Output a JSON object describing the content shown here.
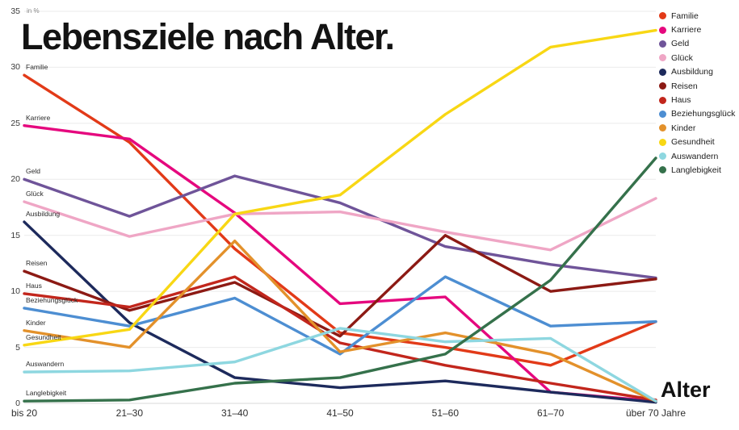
{
  "title": "Lebensziele nach Alter.",
  "y_axis": {
    "unit_label": "in %",
    "ticks": [
      0,
      5,
      10,
      15,
      20,
      25,
      30,
      35
    ],
    "max": 35
  },
  "x_axis": {
    "label": "Alter"
  },
  "chart_data": {
    "type": "line",
    "title": "Lebensziele nach Alter.",
    "xlabel": "Alter",
    "ylabel": "in %",
    "ylim": [
      0,
      35
    ],
    "grid": true,
    "legend_position": "top-right",
    "categories": [
      "bis 20",
      "21–30",
      "31–40",
      "41–50",
      "51–60",
      "61–70",
      "über 70 Jahre"
    ],
    "series": [
      {
        "name": "Familie",
        "color": "#e23a18",
        "values": [
          29.3,
          23.3,
          13.8,
          6.3,
          5.0,
          3.4,
          7.3
        ]
      },
      {
        "name": "Karriere",
        "color": "#e5087e",
        "values": [
          24.8,
          23.6,
          17.0,
          8.9,
          9.5,
          1.0,
          0.2
        ]
      },
      {
        "name": "Geld",
        "color": "#6f5499",
        "values": [
          20.0,
          16.7,
          20.3,
          17.9,
          14.0,
          12.4,
          11.2
        ]
      },
      {
        "name": "Glück",
        "color": "#efa6c5",
        "values": [
          18.0,
          14.9,
          16.9,
          17.1,
          15.3,
          13.7,
          18.3
        ]
      },
      {
        "name": "Ausbildung",
        "color": "#1d2a5c",
        "values": [
          16.2,
          7.2,
          2.3,
          1.4,
          2.0,
          1.0,
          0.1
        ]
      },
      {
        "name": "Reisen",
        "color": "#8c1a14",
        "values": [
          11.8,
          8.3,
          10.8,
          6.0,
          15.0,
          10.0,
          11.1
        ]
      },
      {
        "name": "Haus",
        "color": "#c2261c",
        "values": [
          9.8,
          8.6,
          11.3,
          5.4,
          3.4,
          1.8,
          0.3
        ]
      },
      {
        "name": "Beziehungsglück",
        "color": "#4d8ed2",
        "values": [
          8.5,
          6.9,
          9.4,
          4.4,
          11.3,
          6.9,
          7.3
        ]
      },
      {
        "name": "Kinder",
        "color": "#e3912b",
        "values": [
          6.5,
          5.0,
          14.5,
          4.6,
          6.3,
          4.4,
          0.2
        ]
      },
      {
        "name": "Gesundheit",
        "color": "#f8d714",
        "values": [
          5.2,
          6.6,
          16.9,
          18.6,
          25.8,
          31.8,
          33.3
        ]
      },
      {
        "name": "Auswandern",
        "color": "#8ed7e0",
        "values": [
          2.8,
          2.9,
          3.7,
          6.7,
          5.5,
          5.8,
          0.2
        ]
      },
      {
        "name": "Langlebigkeit",
        "color": "#35714b",
        "values": [
          0.2,
          0.3,
          1.8,
          2.3,
          4.4,
          11.0,
          21.9
        ]
      }
    ]
  }
}
